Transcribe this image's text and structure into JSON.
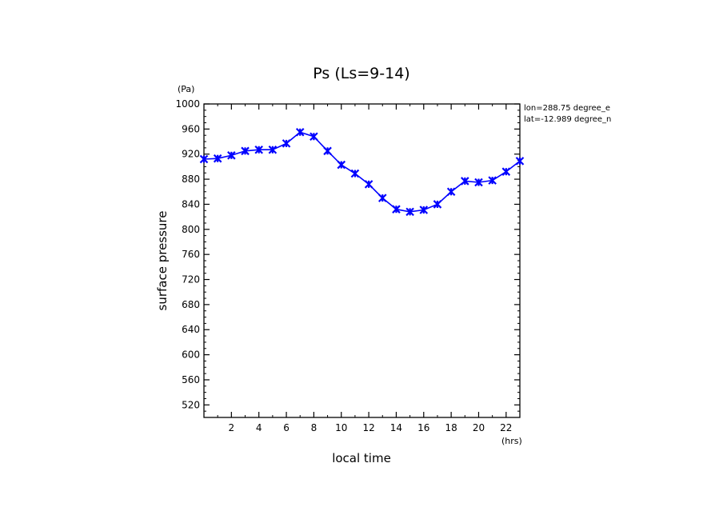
{
  "chart_data": {
    "type": "line",
    "title": "Ps (Ls=9-14)",
    "xlabel": "local time",
    "ylabel": "surface pressure",
    "x_unit": "(hrs)",
    "y_unit": "(Pa)",
    "info_lines": [
      "lon=288.75 degree_e",
      "lat=-12.989 degree_n"
    ],
    "xlim": [
      0,
      23
    ],
    "ylim": [
      500,
      1000
    ],
    "x_ticks": [
      2,
      4,
      6,
      8,
      10,
      12,
      14,
      16,
      18,
      20,
      22
    ],
    "y_ticks": [
      520,
      560,
      600,
      640,
      680,
      720,
      760,
      800,
      840,
      880,
      920,
      960,
      1000
    ],
    "grid": false,
    "line_color": "#0000ff",
    "marker": "x",
    "series": [
      {
        "x": [
          0,
          1,
          2,
          3,
          4,
          5,
          6,
          7,
          8,
          9,
          10,
          11,
          12,
          13,
          14,
          15,
          16,
          17,
          18,
          19,
          20,
          21,
          22,
          23
        ],
        "values": [
          912,
          913,
          918,
          925,
          927,
          927,
          937,
          955,
          948,
          925,
          903,
          889,
          872,
          850,
          832,
          828,
          831,
          840,
          860,
          877,
          875,
          878,
          892,
          909
        ]
      }
    ]
  }
}
